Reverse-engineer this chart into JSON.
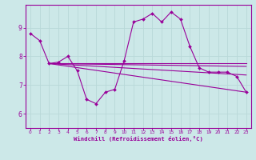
{
  "background_color": "#cce8e8",
  "grid_color": "#aacccc",
  "line_color": "#990099",
  "marker_color": "#990099",
  "xlabel": "Windchill (Refroidissement éolien,°C)",
  "xlabel_color": "#990099",
  "xlim": [
    -0.5,
    23.5
  ],
  "ylim": [
    5.5,
    9.8
  ],
  "yticks": [
    6,
    7,
    8,
    9
  ],
  "xticks": [
    0,
    1,
    2,
    3,
    4,
    5,
    6,
    7,
    8,
    9,
    10,
    11,
    12,
    13,
    14,
    15,
    16,
    17,
    18,
    19,
    20,
    21,
    22,
    23
  ],
  "main_line": {
    "x": [
      0,
      1,
      2,
      3,
      4,
      5,
      6,
      7,
      8,
      9,
      10,
      11,
      12,
      13,
      14,
      15,
      16,
      17,
      18,
      19,
      20,
      21,
      22,
      23
    ],
    "y": [
      8.8,
      8.55,
      7.75,
      7.8,
      8.0,
      7.5,
      6.5,
      6.35,
      6.75,
      6.85,
      7.85,
      9.2,
      9.3,
      9.5,
      9.2,
      9.55,
      9.3,
      8.35,
      7.6,
      7.45,
      7.45,
      7.45,
      7.3,
      6.75
    ]
  },
  "trend_lines": [
    {
      "x": [
        2,
        23
      ],
      "y": [
        7.75,
        7.75
      ]
    },
    {
      "x": [
        2,
        23
      ],
      "y": [
        7.75,
        7.65
      ]
    },
    {
      "x": [
        2,
        23
      ],
      "y": [
        7.75,
        7.35
      ]
    },
    {
      "x": [
        2,
        23
      ],
      "y": [
        7.75,
        6.75
      ]
    }
  ]
}
